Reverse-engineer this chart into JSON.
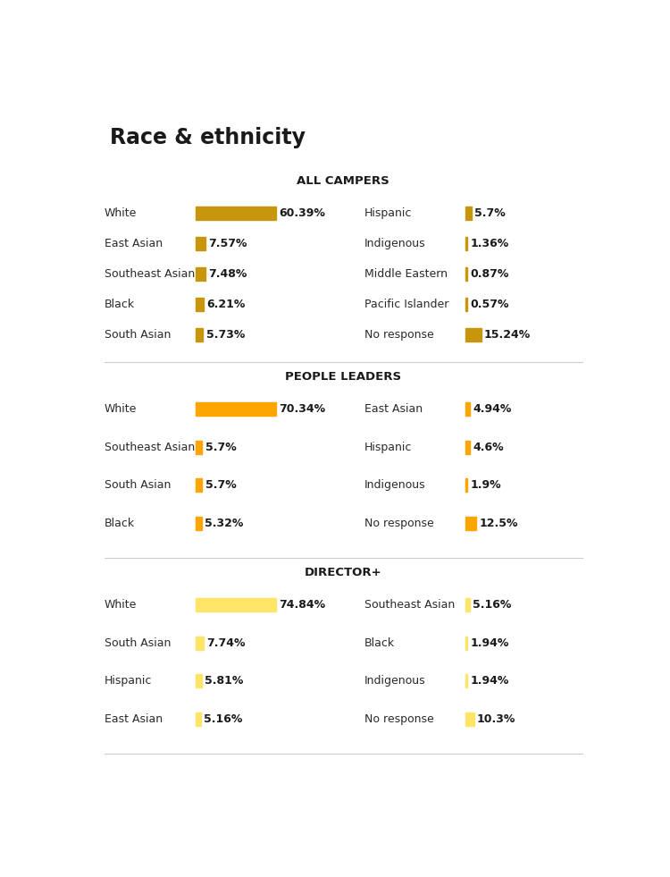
{
  "title": "Race & ethnicity",
  "bg_color": "#ffffff",
  "sections": [
    {
      "heading": "ALL CAMPERS",
      "bar_color": "#C8960C",
      "max_val": 60.39,
      "left_items": [
        {
          "label": "White",
          "value": 60.39,
          "text": "60.39%"
        },
        {
          "label": "East Asian",
          "value": 7.57,
          "text": "7.57%"
        },
        {
          "label": "Southeast Asian",
          "value": 7.48,
          "text": "7.48%"
        },
        {
          "label": "Black",
          "value": 6.21,
          "text": "6.21%"
        },
        {
          "label": "South Asian",
          "value": 5.73,
          "text": "5.73%"
        }
      ],
      "right_items": [
        {
          "label": "Hispanic",
          "value": 5.7,
          "text": "5.7%"
        },
        {
          "label": "Indigenous",
          "value": 1.36,
          "text": "1.36%"
        },
        {
          "label": "Middle Eastern",
          "value": 0.87,
          "text": "0.87%"
        },
        {
          "label": "Pacific Islander",
          "value": 0.57,
          "text": "0.57%"
        },
        {
          "label": "No response",
          "value": 15.24,
          "text": "15.24%"
        }
      ]
    },
    {
      "heading": "PEOPLE LEADERS",
      "bar_color": "#FFA500",
      "max_val": 70.34,
      "left_items": [
        {
          "label": "White",
          "value": 70.34,
          "text": "70.34%"
        },
        {
          "label": "Southeast Asian",
          "value": 5.7,
          "text": "5.7%"
        },
        {
          "label": "South Asian",
          "value": 5.7,
          "text": "5.7%"
        },
        {
          "label": "Black",
          "value": 5.32,
          "text": "5.32%"
        }
      ],
      "right_items": [
        {
          "label": "East Asian",
          "value": 4.94,
          "text": "4.94%"
        },
        {
          "label": "Hispanic",
          "value": 4.6,
          "text": "4.6%"
        },
        {
          "label": "Indigenous",
          "value": 1.9,
          "text": "1.9%"
        },
        {
          "label": "No response",
          "value": 12.5,
          "text": "12.5%"
        }
      ]
    },
    {
      "heading": "DIRECTOR+",
      "bar_color": "#FFE566",
      "max_val": 74.84,
      "left_items": [
        {
          "label": "White",
          "value": 74.84,
          "text": "74.84%"
        },
        {
          "label": "South Asian",
          "value": 7.74,
          "text": "7.74%"
        },
        {
          "label": "Hispanic",
          "value": 5.81,
          "text": "5.81%"
        },
        {
          "label": "East Asian",
          "value": 5.16,
          "text": "5.16%"
        }
      ],
      "right_items": [
        {
          "label": "Southeast Asian",
          "value": 5.16,
          "text": "5.16%"
        },
        {
          "label": "Black",
          "value": 1.94,
          "text": "1.94%"
        },
        {
          "label": "Indigenous",
          "value": 1.94,
          "text": "1.94%"
        },
        {
          "label": "No response",
          "value": 10.3,
          "text": "10.3%"
        }
      ]
    }
  ]
}
